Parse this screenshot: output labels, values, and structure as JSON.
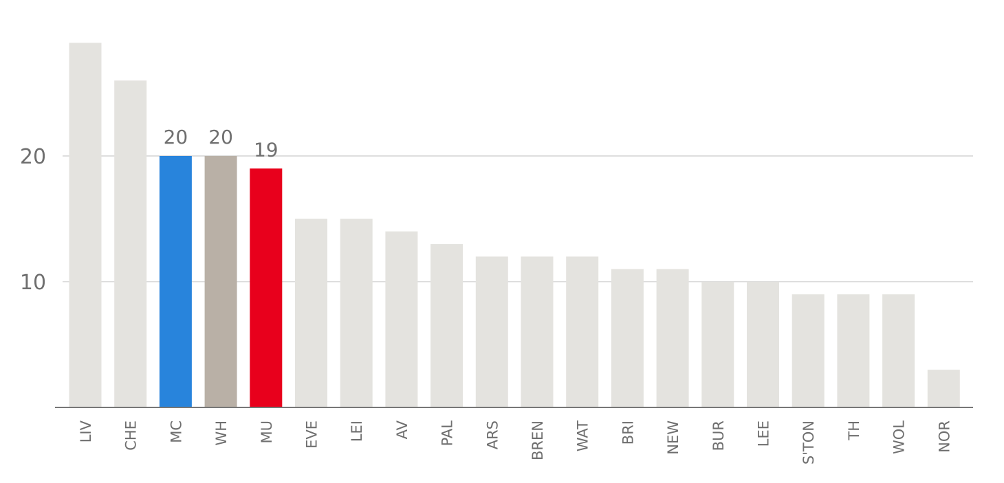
{
  "chart_data": {
    "type": "bar",
    "categories": [
      "LIV",
      "CHE",
      "MC",
      "WH",
      "MU",
      "EVE",
      "LEI",
      "AV",
      "PAL",
      "ARS",
      "BREN",
      "WAT",
      "BRI",
      "NEW",
      "BUR",
      "LEE",
      "S'TON",
      "TH",
      "WOL",
      "NOR"
    ],
    "values": [
      29,
      26,
      20,
      20,
      19,
      15,
      15,
      14,
      13,
      12,
      12,
      12,
      11,
      11,
      10,
      10,
      9,
      9,
      9,
      3
    ],
    "value_labels": [
      null,
      null,
      "20",
      "20",
      "19",
      null,
      null,
      null,
      null,
      null,
      null,
      null,
      null,
      null,
      null,
      null,
      null,
      null,
      null,
      null
    ],
    "colors": [
      "#e4e3df",
      "#e4e3df",
      "#2884dc",
      "#b9b0a6",
      "#e8001c",
      "#e4e3df",
      "#e4e3df",
      "#e4e3df",
      "#e4e3df",
      "#e4e3df",
      "#e4e3df",
      "#e4e3df",
      "#e4e3df",
      "#e4e3df",
      "#e4e3df",
      "#e4e3df",
      "#e4e3df",
      "#e4e3df",
      "#e4e3df",
      "#e4e3df"
    ],
    "ylim": [
      0,
      30
    ],
    "yticks": [
      10,
      20
    ],
    "grid": true
  }
}
